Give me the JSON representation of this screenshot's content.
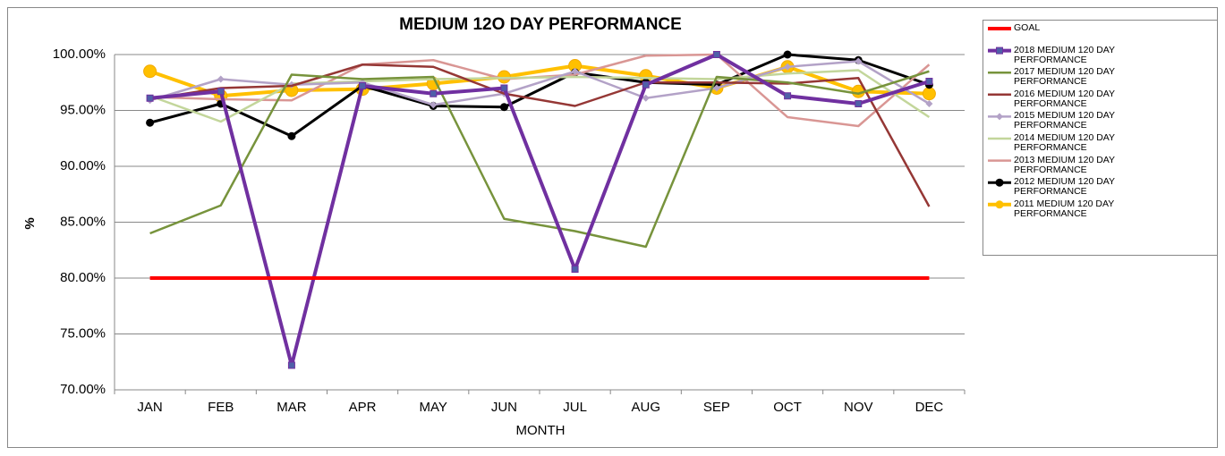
{
  "chart_data": {
    "type": "line",
    "title": "MEDIUM 12O DAY PERFORMANCE",
    "xlabel": "MONTH",
    "ylabel": "%",
    "categories": [
      "JAN",
      "FEB",
      "MAR",
      "APR",
      "MAY",
      "JUN",
      "JUL",
      "AUG",
      "SEP",
      "OCT",
      "NOV",
      "DEC"
    ],
    "ylim": [
      70,
      100
    ],
    "yticks": [
      {
        "value": 70,
        "label": "70.00%"
      },
      {
        "value": 75,
        "label": "75.00%"
      },
      {
        "value": 80,
        "label": "80.00%"
      },
      {
        "value": 85,
        "label": "85.00%"
      },
      {
        "value": 90,
        "label": "90.00%"
      },
      {
        "value": 95,
        "label": "95.00%"
      },
      {
        "value": 100,
        "label": "100.00%"
      }
    ],
    "grid": true,
    "legend": "right",
    "series": [
      {
        "name": "GOAL",
        "color": "#ff0000",
        "marker": "none",
        "values": [
          80,
          80,
          80,
          80,
          80,
          80,
          80,
          80,
          80,
          80,
          80,
          80
        ]
      },
      {
        "name": "2018 MEDIUM 120 DAY PERFORMANCE",
        "color": "#7030a0",
        "marker": "square",
        "values": [
          96.1,
          96.7,
          72.2,
          97.2,
          96.5,
          97.0,
          80.8,
          97.3,
          100,
          96.3,
          95.6,
          97.6
        ]
      },
      {
        "name": "2017 MEDIUM 120 DAY PERFORMANCE",
        "color": "#77933c",
        "marker": "none",
        "values": [
          84.0,
          86.5,
          98.2,
          97.8,
          98.0,
          85.3,
          84.2,
          82.8,
          98.0,
          97.5,
          96.5,
          98.5
        ]
      },
      {
        "name": "2016 MEDIUM 120 DAY PERFORMANCE",
        "color": "#953735",
        "marker": "none",
        "values": [
          96.0,
          97.0,
          97.2,
          99.1,
          98.9,
          96.5,
          95.4,
          97.5,
          97.5,
          97.4,
          97.9,
          86.4
        ]
      },
      {
        "name": "2015 MEDIUM 120 DAY PERFORMANCE",
        "color": "#b3a2c7",
        "marker": "diamond",
        "values": [
          95.9,
          97.8,
          97.3,
          97.5,
          95.5,
          96.5,
          98.5,
          96.1,
          97.0,
          98.9,
          99.4,
          95.6
        ]
      },
      {
        "name": "2014 MEDIUM 120 DAY PERFORMANCE",
        "color": "#c3d69b",
        "marker": "none",
        "values": [
          96.3,
          94.0,
          97.4,
          97.6,
          97.8,
          97.9,
          98.0,
          97.9,
          97.8,
          98.3,
          98.6,
          94.4
        ]
      },
      {
        "name": "2013 MEDIUM 120 DAY PERFORMANCE",
        "color": "#d99694",
        "marker": "none",
        "values": [
          96.2,
          96.0,
          95.9,
          99.1,
          99.5,
          97.8,
          98.2,
          99.9,
          100,
          94.4,
          93.6,
          99.1
        ]
      },
      {
        "name": "2012 MEDIUM 120 DAY PERFORMANCE",
        "color": "#000000",
        "marker": "circle",
        "values": [
          93.9,
          95.6,
          92.7,
          97.2,
          95.4,
          95.3,
          98.4,
          97.5,
          97.3,
          100,
          99.5,
          97.3
        ]
      },
      {
        "name": "2011 MEDIUM 120 DAY PERFORMANCE",
        "color": "#ffc000",
        "marker": "bigcircle",
        "values": [
          98.5,
          96.3,
          96.8,
          96.9,
          97.4,
          98.0,
          99.0,
          98.1,
          97.0,
          98.9,
          96.7,
          96.5
        ]
      }
    ]
  }
}
